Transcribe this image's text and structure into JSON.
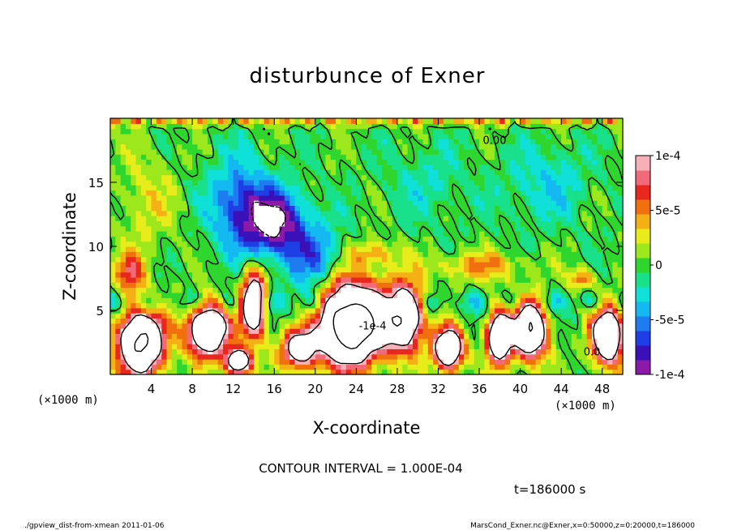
{
  "chart_data": {
    "type": "heatmap",
    "title": "disturbunce of Exner",
    "xlabel": "X-coordinate",
    "ylabel": "Z-coordinate",
    "x_unit_label": "(×1000 m)",
    "xlim": [
      0,
      50
    ],
    "ylim": [
      0,
      20
    ],
    "x_ticks": [
      4,
      8,
      12,
      16,
      20,
      24,
      28,
      32,
      36,
      40,
      44,
      48
    ],
    "y_ticks": [
      5,
      10,
      15
    ],
    "colorbar": {
      "range": [
        -0.0001,
        0.0001
      ],
      "tick_values": [
        0.0001,
        5e-05,
        0,
        -5e-05,
        -0.0001
      ],
      "tick_labels": [
        "1e-4",
        "5e-5",
        "0",
        "-5e-5",
        "-1e-4"
      ],
      "colors": [
        "#8b1aa8",
        "#3a10b8",
        "#1f3fe6",
        "#1e7cf0",
        "#13b9f0",
        "#0fe0d8",
        "#19e08a",
        "#2ed62e",
        "#9ce81c",
        "#e8ec1a",
        "#f5b015",
        "#f07010",
        "#e8281e",
        "#f06a7a",
        "#f7b0b8"
      ]
    },
    "contour_labels": [
      {
        "text": "0.00",
        "x": 37.5,
        "z": 18.0
      },
      {
        "text": "-1e-4",
        "x": 25.6,
        "z": 3.5
      },
      {
        "text": "0.0",
        "x": 47.0,
        "z": 1.5
      }
    ],
    "features": [
      {
        "x": 16.0,
        "z": 11.8,
        "sign": -1,
        "amp": 1.0,
        "sx": 3.2,
        "sz": 2.6
      },
      {
        "x": 12.5,
        "z": 13.5,
        "sign": -1,
        "amp": 0.6,
        "sx": 3.0,
        "sz": 3.5
      },
      {
        "x": 20.0,
        "z": 9.0,
        "sign": -1,
        "amp": 0.5,
        "sx": 3.0,
        "sz": 2.5
      },
      {
        "x": 3.5,
        "z": 13.5,
        "sign": 1,
        "amp": 0.25,
        "sx": 3.0,
        "sz": 4.0
      },
      {
        "x": 31.0,
        "z": 15.0,
        "sign": -1,
        "amp": 0.2,
        "sx": 4.0,
        "sz": 3.0
      },
      {
        "x": 42.5,
        "z": 15.0,
        "sign": -1,
        "amp": 0.3,
        "sx": 4.0,
        "sz": 3.0
      },
      {
        "x": 36.0,
        "z": 8.5,
        "sign": 1,
        "amp": 0.45,
        "sx": 4.5,
        "sz": 1.2
      },
      {
        "x": 46.0,
        "z": 7.5,
        "sign": 1,
        "amp": 0.6,
        "sx": 1.2,
        "sz": 0.8
      },
      {
        "x": 2.0,
        "z": 8.0,
        "sign": 1,
        "amp": 0.7,
        "sx": 1.5,
        "sz": 1.5
      },
      {
        "x": 3.0,
        "z": 2.5,
        "sign": 1,
        "amp": 2.2,
        "sx": 2.2,
        "sz": 2.5
      },
      {
        "x": 9.5,
        "z": 3.5,
        "sign": 1,
        "amp": 2.0,
        "sx": 2.0,
        "sz": 2.0
      },
      {
        "x": 14.0,
        "z": 5.5,
        "sign": 1,
        "amp": 1.8,
        "sx": 1.2,
        "sz": 2.5
      },
      {
        "x": 12.5,
        "z": 1.0,
        "sign": 1,
        "amp": 1.8,
        "sx": 1.2,
        "sz": 1.0
      },
      {
        "x": 18.5,
        "z": 2.0,
        "sign": 1,
        "amp": 1.5,
        "sx": 1.8,
        "sz": 1.5
      },
      {
        "x": 23.5,
        "z": 4.0,
        "sign": 1,
        "amp": 3.0,
        "sx": 2.8,
        "sz": 3.0
      },
      {
        "x": 28.5,
        "z": 4.5,
        "sign": 1,
        "amp": 2.0,
        "sx": 2.0,
        "sz": 2.5
      },
      {
        "x": 33.0,
        "z": 2.0,
        "sign": 1,
        "amp": 2.0,
        "sx": 1.4,
        "sz": 1.6
      },
      {
        "x": 38.0,
        "z": 3.0,
        "sign": 1,
        "amp": 2.0,
        "sx": 1.2,
        "sz": 2.0
      },
      {
        "x": 41.0,
        "z": 3.5,
        "sign": 1,
        "amp": 2.0,
        "sx": 1.6,
        "sz": 2.2
      },
      {
        "x": 48.5,
        "z": 3.0,
        "sign": 1,
        "amp": 2.0,
        "sx": 1.5,
        "sz": 2.2
      },
      {
        "x": 25.5,
        "z": 9.5,
        "sign": 1,
        "amp": 0.45,
        "sx": 2.5,
        "sz": 1.0
      }
    ]
  },
  "contour_interval": "CONTOUR INTERVAL = 1.000E-04",
  "time_label": "t=186000 s",
  "footer_left": "./gpview_dist-from-xmean  2011-01-06",
  "footer_right": "MarsCond_Exner.nc@Exner,x=0:50000,z=0:20000,t=186000"
}
